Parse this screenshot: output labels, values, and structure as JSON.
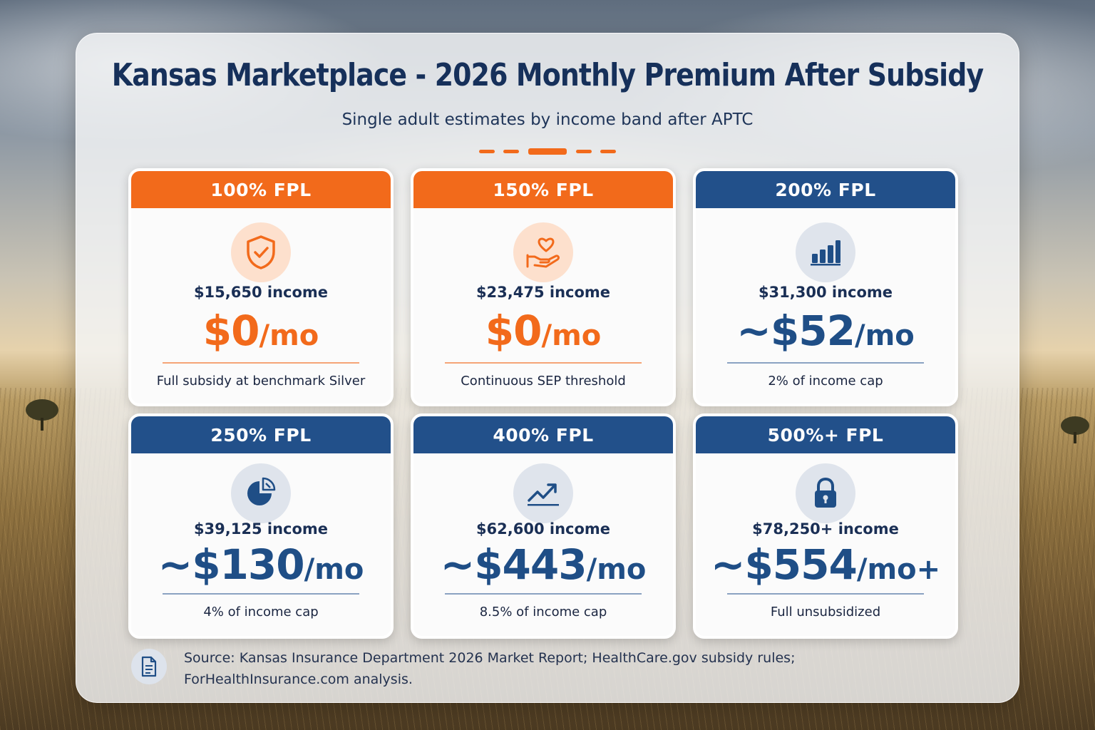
{
  "header": {
    "title": "Kansas Marketplace - 2026 Monthly Premium After Subsidy",
    "subtitle": "Single adult estimates by income band after APTC"
  },
  "colors": {
    "orange": "#f26a1b",
    "navy": "#22508a",
    "title": "#16305a"
  },
  "cards": [
    {
      "band": "100% FPL",
      "income": "$15,650 income",
      "prefix": "",
      "amount": "$0",
      "unit": "/mo",
      "note": "Full subsidy at benchmark Silver",
      "icon": "shield-check-icon",
      "theme": "orange"
    },
    {
      "band": "150% FPL",
      "income": "$23,475 income",
      "prefix": "",
      "amount": "$0",
      "unit": "/mo",
      "note": "Continuous SEP threshold",
      "icon": "heart-hand-icon",
      "theme": "orange"
    },
    {
      "band": "200% FPL",
      "income": "$31,300 income",
      "prefix": "~",
      "amount": "$52",
      "unit": "/mo",
      "note": "2% of income cap",
      "icon": "bar-chart-icon",
      "theme": "blue"
    },
    {
      "band": "250% FPL",
      "income": "$39,125 income",
      "prefix": "~",
      "amount": "$130",
      "unit": "/mo",
      "note": "4% of income cap",
      "icon": "pie-chart-icon",
      "theme": "blue"
    },
    {
      "band": "400% FPL",
      "income": "$62,600 income",
      "prefix": "~",
      "amount": "$443",
      "unit": "/mo",
      "note": "8.5% of income cap",
      "icon": "trend-up-icon",
      "theme": "blue"
    },
    {
      "band": "500%+ FPL",
      "income": "$78,250+ income",
      "prefix": "~",
      "amount": "$554",
      "unit": "/mo+",
      "note": "Full unsubsidized",
      "icon": "lock-icon",
      "theme": "blue"
    }
  ],
  "footer": {
    "source_line1": "Source: Kansas Insurance Department 2026 Market Report; HealthCare.gov subsidy rules;",
    "source_line2": "ForHealthInsurance.com analysis.",
    "icon": "document-icon"
  }
}
